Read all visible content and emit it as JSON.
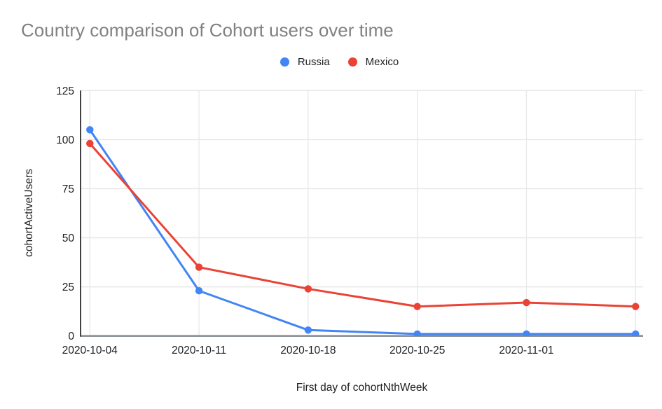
{
  "title": "Country comparison of Cohort users over time",
  "axes": {
    "x_title": "First day of cohortNthWeek",
    "y_title": "cohortActiveUsers"
  },
  "chart_data": {
    "type": "line",
    "title": "Country comparison of Cohort users over time",
    "xlabel": "First day of cohortNthWeek",
    "ylabel": "cohortActiveUsers",
    "categories": [
      "2020-10-04",
      "2020-10-11",
      "2020-10-18",
      "2020-10-25",
      "2020-11-01",
      ""
    ],
    "series": [
      {
        "name": "Russia",
        "color": "#4285F4",
        "values": [
          105,
          23,
          3,
          1,
          1,
          1
        ]
      },
      {
        "name": "Mexico",
        "color": "#EA4335",
        "values": [
          98,
          35,
          24,
          15,
          17,
          15
        ]
      }
    ],
    "ylim": [
      0,
      125
    ],
    "y_ticks": [
      0,
      25,
      50,
      75,
      100,
      125
    ],
    "grid": true,
    "legend_position": "top",
    "colors": {
      "gridline": "#e6e6e6",
      "vertical_gridline": "#e9e9e9",
      "y_axis_line": "#424242",
      "x_axis_line": "#80868b",
      "tick_label": "#202124",
      "title_text": "#818181"
    }
  }
}
